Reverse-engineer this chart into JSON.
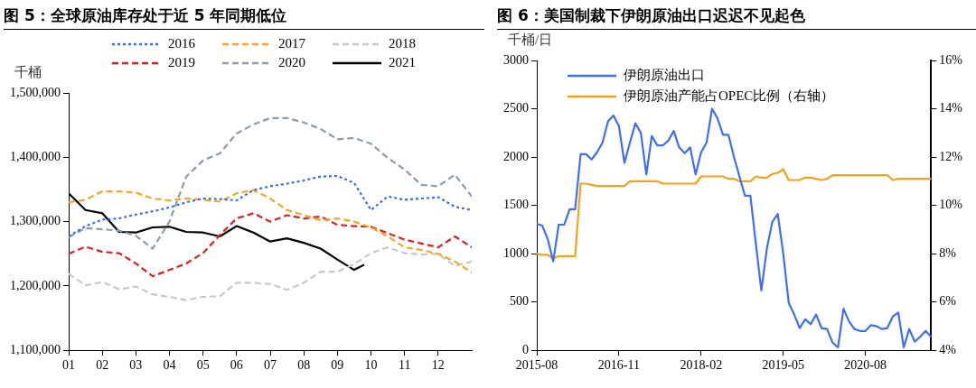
{
  "chart_data": [
    {
      "type": "line",
      "title": "图 5：全球原油库存处于近 5 年同期低位",
      "ylabel": "千桶",
      "x": [
        1,
        1.5,
        2,
        2.5,
        3,
        3.5,
        4,
        4.5,
        5,
        5.5,
        6,
        6.5,
        7,
        7.5,
        8,
        8.5,
        9,
        9.5,
        10,
        10.5,
        11,
        11.5,
        12,
        12.5,
        13
      ],
      "xlim": [
        1,
        13
      ],
      "xticks": [
        {
          "value": 1,
          "label": "01"
        },
        {
          "value": 2,
          "label": "02"
        },
        {
          "value": 3,
          "label": "03"
        },
        {
          "value": 4,
          "label": "04"
        },
        {
          "value": 5,
          "label": "05"
        },
        {
          "value": 6,
          "label": "06"
        },
        {
          "value": 7,
          "label": "07"
        },
        {
          "value": 8,
          "label": "08"
        },
        {
          "value": 9,
          "label": "09"
        },
        {
          "value": 10,
          "label": "10"
        },
        {
          "value": 11,
          "label": "11"
        },
        {
          "value": 12,
          "label": "12"
        }
      ],
      "ylim": [
        1100000,
        1500000
      ],
      "yticks": [
        {
          "value": 1100000,
          "label": "1,100,000"
        },
        {
          "value": 1200000,
          "label": "1,200,000"
        },
        {
          "value": 1300000,
          "label": "1,300,000"
        },
        {
          "value": 1400000,
          "label": "1,400,000"
        },
        {
          "value": 1500000,
          "label": "1,500,000"
        }
      ],
      "legend": "top",
      "grid": false,
      "marker": "none",
      "series": [
        {
          "name": "2016",
          "color": "#3a6fe0",
          "line_style": "dotted",
          "values": [
            1277000,
            1293000,
            1303000,
            1305000,
            1311000,
            1316000,
            1322000,
            1330000,
            1336000,
            1335000,
            1333000,
            1349000,
            1355000,
            1359000,
            1364000,
            1370000,
            1371000,
            1360000,
            1318000,
            1339000,
            1334000,
            1336000,
            1338000,
            1323000,
            1318000
          ]
        },
        {
          "name": "2017",
          "color": "#f5a623",
          "line_style": "dashed",
          "values": [
            1330000,
            1334000,
            1347000,
            1347000,
            1345000,
            1336000,
            1333000,
            1336000,
            1334000,
            1331000,
            1344000,
            1349000,
            1336000,
            1318000,
            1310000,
            1302000,
            1305000,
            1300000,
            1291000,
            1277000,
            1260000,
            1256000,
            1250000,
            1238000,
            1221000
          ]
        },
        {
          "name": "2018",
          "color": "#c8c8c8",
          "line_style": "dashed",
          "values": [
            1219000,
            1201000,
            1206000,
            1195000,
            1199000,
            1187000,
            1183000,
            1178000,
            1183000,
            1184000,
            1205000,
            1205000,
            1203000,
            1194000,
            1205000,
            1222000,
            1222000,
            1234000,
            1251000,
            1260000,
            1251000,
            1249000,
            1250000,
            1231000,
            1238000
          ]
        },
        {
          "name": "2019",
          "color": "#e02020",
          "line_style": "dashed",
          "values": [
            1250000,
            1261000,
            1253000,
            1251000,
            1235000,
            1215000,
            1225000,
            1235000,
            1251000,
            1279000,
            1305000,
            1313000,
            1300000,
            1310000,
            1305000,
            1308000,
            1295000,
            1293000,
            1292000,
            1282000,
            1272000,
            1266000,
            1260000,
            1277000,
            1260000
          ]
        },
        {
          "name": "2020",
          "color": "#8c9bb0",
          "line_style": "dashed",
          "values": [
            1276000,
            1290000,
            1288000,
            1286000,
            1278000,
            1258000,
            1300000,
            1370000,
            1395000,
            1406000,
            1437000,
            1451000,
            1461000,
            1461000,
            1454000,
            1444000,
            1428000,
            1430000,
            1421000,
            1399000,
            1381000,
            1357000,
            1355000,
            1373000,
            1339000
          ]
        },
        {
          "name": "2021",
          "color": "#000000",
          "line_style": "solid",
          "x": [
            1,
            1.5,
            2,
            2.5,
            3,
            3.5,
            4,
            4.5,
            5,
            5.5,
            6,
            6.5,
            7,
            7.5,
            8,
            8.5,
            9,
            9.5,
            9.8
          ],
          "values": [
            1344000,
            1318000,
            1313000,
            1284000,
            1283000,
            1291000,
            1292000,
            1284000,
            1283000,
            1277000,
            1293000,
            1283000,
            1269000,
            1274000,
            1267000,
            1258000,
            1241000,
            1225000,
            1233000
          ]
        }
      ]
    },
    {
      "type": "line",
      "title": "图 6：美国制裁下伊朗原油出口迟迟不见起色",
      "ylabel": "千桶/日",
      "categories": [
        "2015-08",
        null,
        null,
        null,
        null,
        null,
        null,
        null,
        null,
        null,
        null,
        null,
        null,
        null,
        null,
        "2016-11",
        null,
        null,
        null,
        null,
        null,
        null,
        null,
        null,
        null,
        null,
        null,
        null,
        null,
        null,
        "2018-02",
        null,
        null,
        null,
        null,
        null,
        null,
        null,
        null,
        null,
        null,
        null,
        null,
        null,
        null,
        "2019-05",
        null,
        null,
        null,
        null,
        null,
        null,
        null,
        null,
        null,
        null,
        null,
        null,
        null,
        null,
        "2020-08",
        null,
        null,
        null,
        null,
        null,
        null,
        null,
        null,
        null,
        null,
        null,
        null
      ],
      "ylim": [
        0,
        3000
      ],
      "yticks": [
        0,
        500,
        1000,
        1500,
        2000,
        2500,
        3000
      ],
      "y2lim": [
        4,
        16
      ],
      "y2ticks": [
        {
          "value": 4,
          "label": "4%"
        },
        {
          "value": 6,
          "label": "6%"
        },
        {
          "value": 8,
          "label": "8%"
        },
        {
          "value": 10,
          "label": "10%"
        },
        {
          "value": 12,
          "label": "12%"
        },
        {
          "value": 14,
          "label": "14%"
        },
        {
          "value": 16,
          "label": "16%"
        }
      ],
      "legend": "top left",
      "grid": false,
      "marker": "none",
      "series": [
        {
          "name": "伊朗原油出口",
          "color": "#3f6ff0",
          "values": [
            1310,
            1290,
            1150,
            920,
            1300,
            1300,
            1460,
            1460,
            2030,
            2030,
            1975,
            2050,
            2150,
            2370,
            2430,
            2320,
            1940,
            2150,
            2350,
            2250,
            1820,
            2220,
            2120,
            2120,
            2170,
            2270,
            2100,
            2040,
            2100,
            1820,
            2050,
            2150,
            2500,
            2400,
            2230,
            2230,
            2000,
            1800,
            1600,
            1600,
            1100,
            620,
            1050,
            1330,
            1410,
            1000,
            490,
            370,
            230,
            320,
            270,
            370,
            230,
            220,
            80,
            30,
            430,
            300,
            220,
            200,
            200,
            260,
            250,
            220,
            230,
            350,
            390,
            30,
            220,
            90,
            140,
            200,
            140
          ]
        },
        {
          "name": "伊朗原油产能占OPEC比例（右轴）",
          "color": "#f5a21a",
          "axis": "y2",
          "values": [
            8.0,
            7.95,
            7.95,
            7.8,
            7.9,
            7.9,
            7.9,
            7.9,
            10.9,
            10.9,
            10.85,
            10.8,
            10.8,
            10.8,
            10.8,
            10.8,
            10.8,
            11.0,
            11.0,
            11.0,
            11.0,
            11.0,
            11.0,
            10.9,
            10.9,
            10.9,
            10.9,
            10.9,
            10.9,
            10.9,
            11.2,
            11.2,
            11.2,
            11.2,
            11.2,
            11.1,
            11.1,
            11.0,
            11.0,
            11.0,
            11.2,
            11.15,
            11.15,
            11.3,
            11.35,
            11.5,
            11.05,
            11.05,
            11.05,
            11.15,
            11.15,
            11.1,
            11.05,
            11.1,
            11.25,
            11.25,
            11.25,
            11.25,
            11.25,
            11.25,
            11.25,
            11.25,
            11.25,
            11.25,
            11.25,
            11.05,
            11.1,
            11.1,
            11.1,
            11.1,
            11.1,
            11.1,
            11.1
          ]
        }
      ]
    }
  ]
}
